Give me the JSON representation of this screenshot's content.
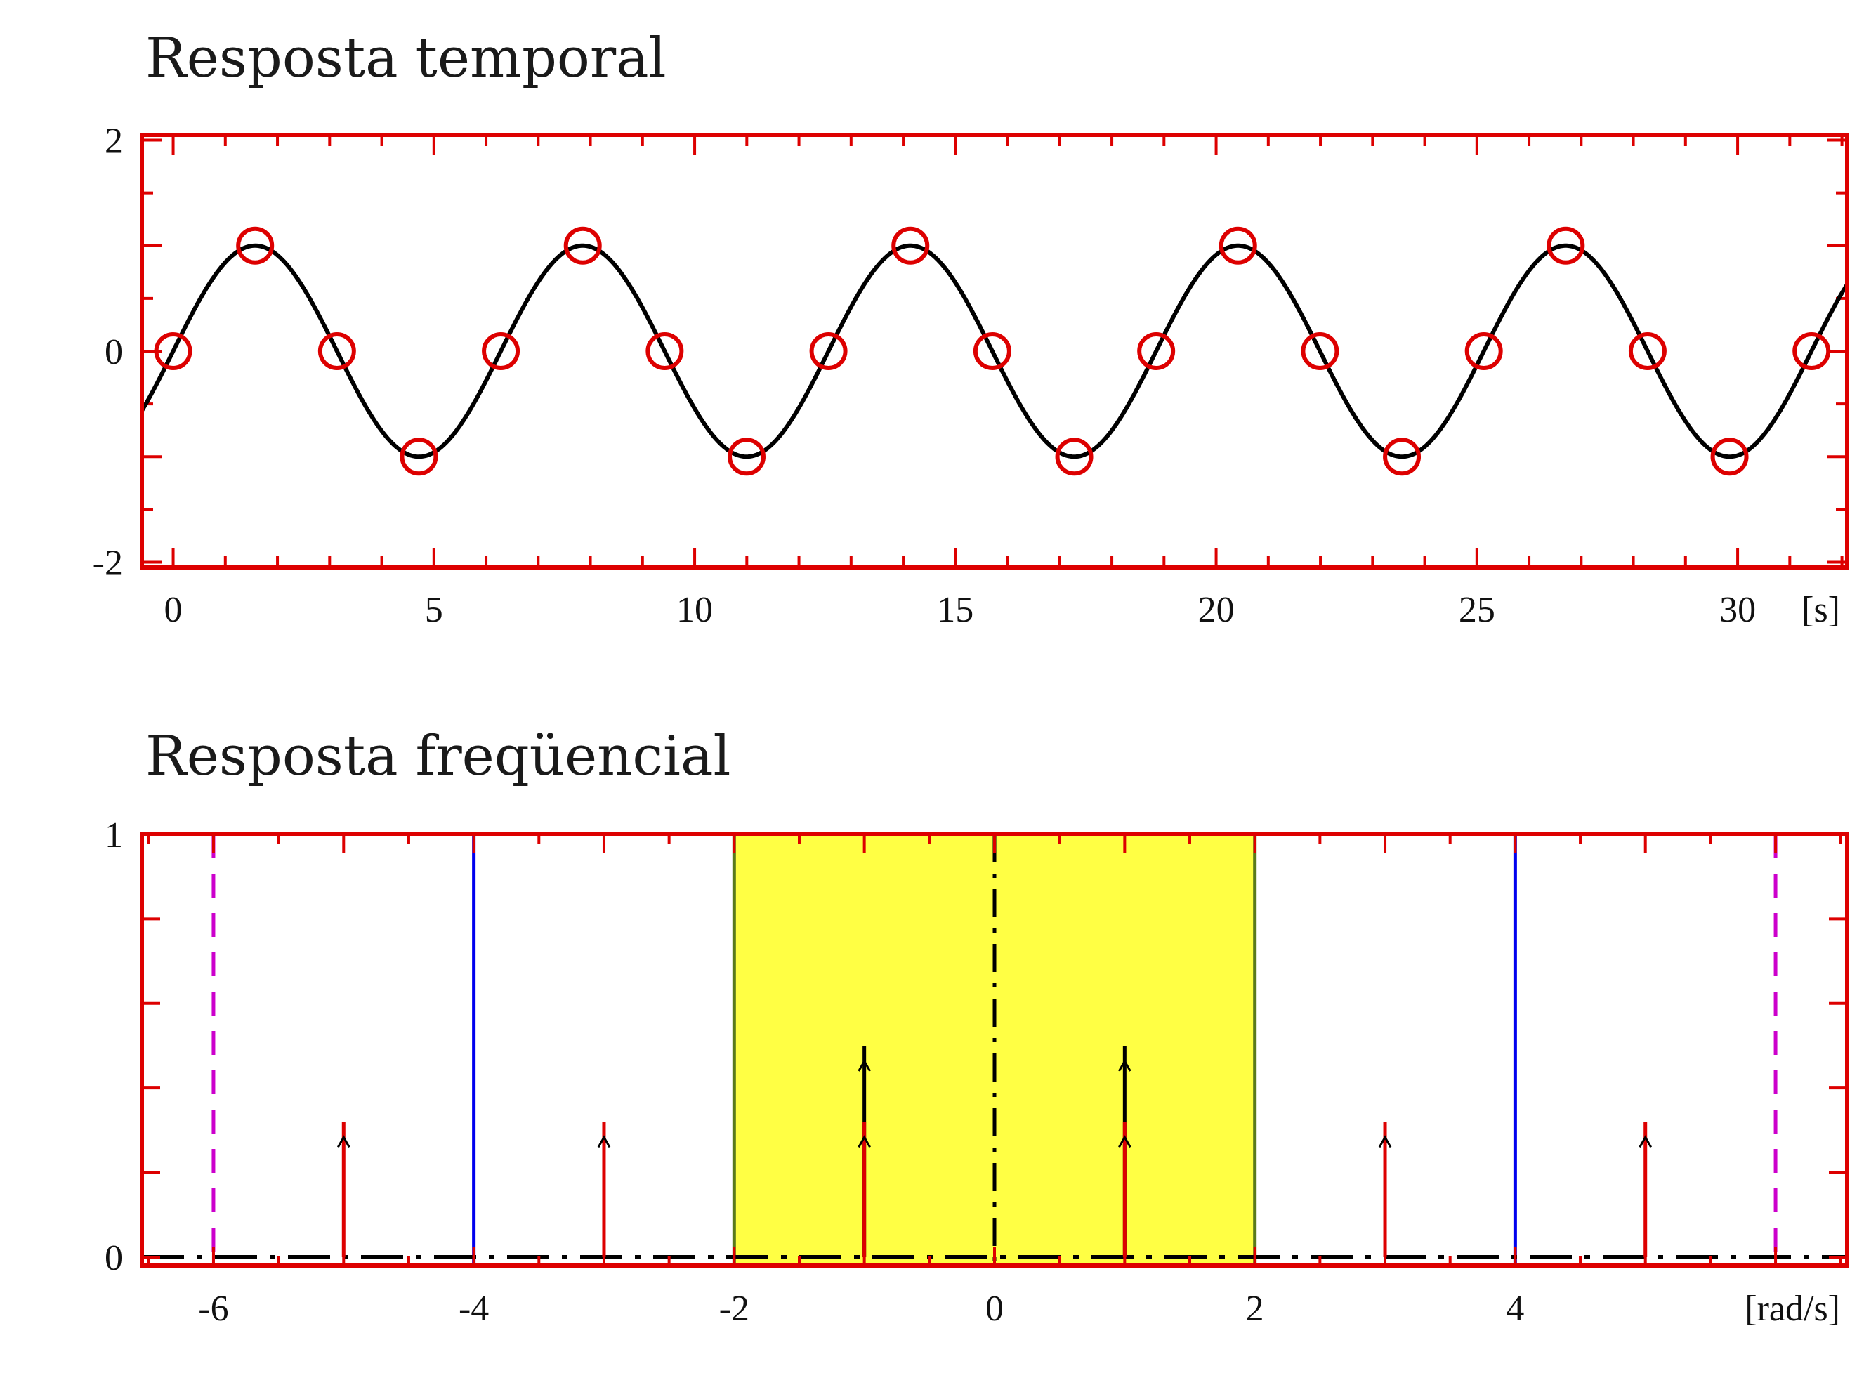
{
  "chart_data": [
    {
      "type": "line",
      "title": "Resposta temporal",
      "xlabel": "[s]",
      "ylabel": "",
      "xlim": [
        -0.6,
        32.1
      ],
      "ylim": [
        -2.05,
        2.05
      ],
      "x_ticks": [
        0,
        5,
        10,
        15,
        20,
        25,
        30
      ],
      "y_ticks": [
        -2,
        0,
        2
      ],
      "grid": false,
      "series": [
        {
          "kind": "curve",
          "function": "sin(t)",
          "color": "#000000"
        },
        {
          "kind": "markers",
          "marker": "open-circle",
          "color": "#dd0000",
          "x": [
            0,
            1.571,
            3.142,
            4.712,
            6.283,
            7.854,
            9.425,
            10.996,
            12.566,
            14.137,
            15.708,
            17.279,
            18.85,
            20.42,
            21.991,
            23.562,
            25.133,
            26.704,
            28.274,
            29.845,
            31.416
          ],
          "y": [
            0,
            1,
            0,
            -1,
            0,
            1,
            0,
            -1,
            0,
            1,
            0,
            -1,
            0,
            1,
            0,
            -1,
            0,
            1,
            0,
            -1,
            0
          ]
        }
      ]
    },
    {
      "type": "line",
      "title": "Resposta freqüencial",
      "xlabel": "[rad/s]",
      "ylabel": "",
      "xlim": [
        -6.55,
        6.55
      ],
      "ylim": [
        -0.02,
        1.0
      ],
      "x_ticks": [
        -6,
        -4,
        -2,
        0,
        2,
        4
      ],
      "y_ticks": [
        0,
        1
      ],
      "grid": false,
      "passband": {
        "from": -2,
        "to": 2,
        "color": "#ffff44",
        "edge_color": "#5a7a1a"
      },
      "vertical_lines": [
        {
          "x": -6,
          "style": "dashed",
          "color": "#cc00cc"
        },
        {
          "x": 6,
          "style": "dashed",
          "color": "#cc00cc"
        },
        {
          "x": -4,
          "style": "solid",
          "color": "#0000ee"
        },
        {
          "x": 4,
          "style": "solid",
          "color": "#0000ee"
        },
        {
          "x": 0,
          "style": "dash-dot",
          "color": "#000000"
        }
      ],
      "baseline": {
        "y": 0,
        "style": "dash-dot",
        "color": "#000000"
      },
      "impulses_red": {
        "x": [
          -5,
          -3,
          -1,
          1,
          3,
          5
        ],
        "height": 0.32,
        "color": "#dd0000"
      },
      "impulses_black": {
        "x": [
          -1,
          1
        ],
        "height": 0.5,
        "color": "#000000"
      }
    }
  ]
}
